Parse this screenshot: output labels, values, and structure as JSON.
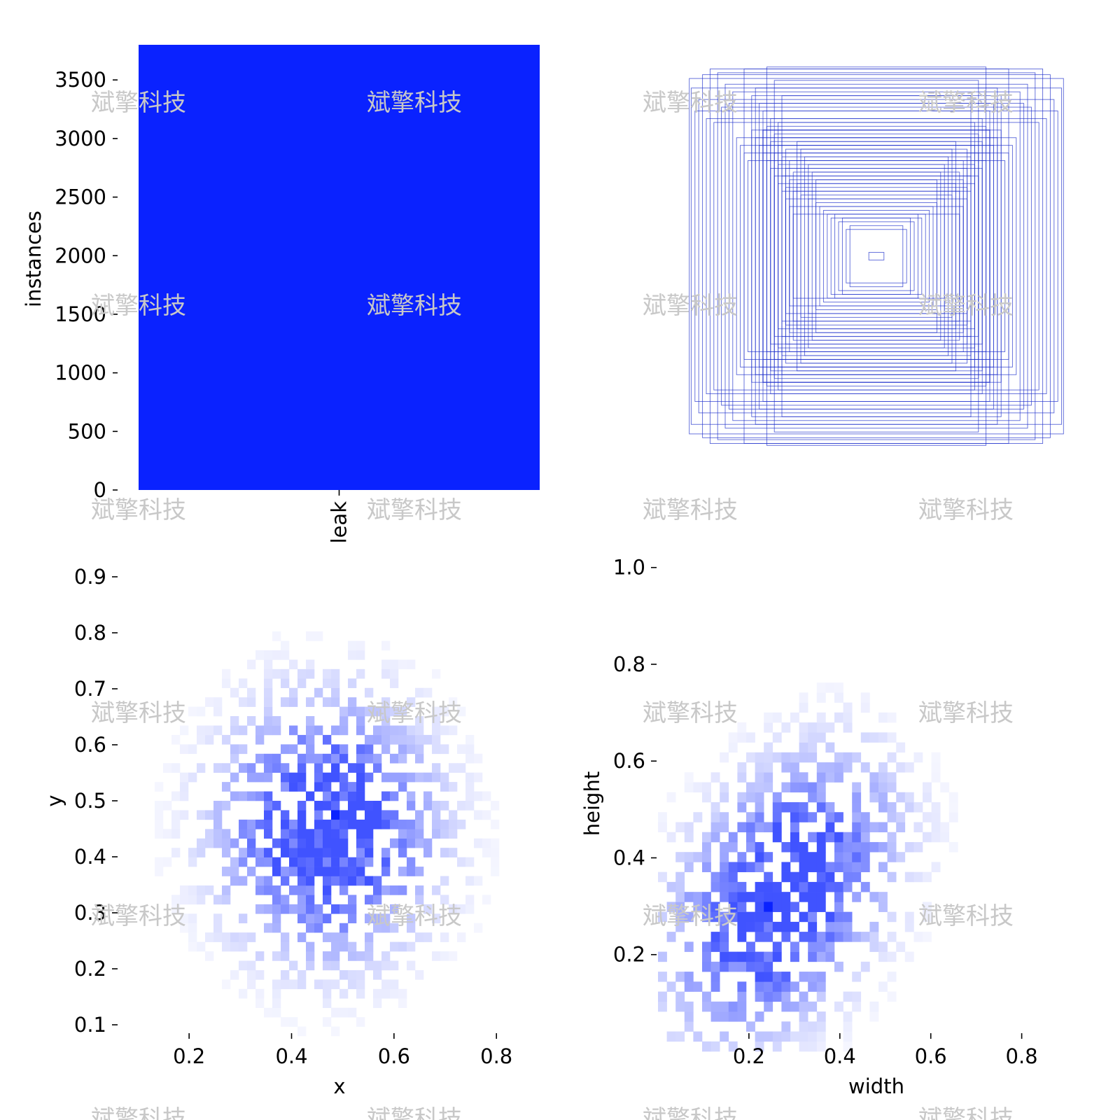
{
  "colors": {
    "bar": "#0a22ff",
    "box_stroke": "#2233cc",
    "text": "#000000",
    "watermark": "#c8c8c8"
  },
  "watermark_text": "斌擎科技",
  "chart_data": [
    {
      "type": "bar",
      "id": "instances",
      "title": "",
      "categories": [
        "leak"
      ],
      "values": [
        3800
      ],
      "xlabel": "",
      "ylabel": "instances",
      "ylim": [
        0,
        3800
      ],
      "yticks": [
        0,
        500,
        1000,
        1500,
        2000,
        2500,
        3000,
        3500
      ],
      "ytick_labels": [
        "0",
        "500",
        "1000",
        "1500",
        "2000",
        "2500",
        "3000",
        "3500"
      ],
      "grid": false
    },
    {
      "type": "other",
      "id": "boxes",
      "title": "",
      "description_kind": "overlaid centered bounding boxes",
      "box_sizes": [
        {
          "w": 0.99,
          "h": 0.93
        },
        {
          "w": 0.98,
          "h": 0.88
        },
        {
          "w": 0.92,
          "h": 0.95
        },
        {
          "w": 0.88,
          "h": 0.98
        },
        {
          "w": 0.84,
          "h": 0.96
        },
        {
          "w": 0.8,
          "h": 0.9
        },
        {
          "w": 0.76,
          "h": 0.86
        },
        {
          "w": 0.7,
          "h": 0.98
        },
        {
          "w": 0.58,
          "h": 0.99
        },
        {
          "w": 0.54,
          "h": 0.92
        },
        {
          "w": 0.5,
          "h": 0.84
        },
        {
          "w": 0.96,
          "h": 0.76
        },
        {
          "w": 0.9,
          "h": 0.72
        },
        {
          "w": 0.86,
          "h": 0.7
        },
        {
          "w": 0.62,
          "h": 0.8
        },
        {
          "w": 0.6,
          "h": 0.76
        },
        {
          "w": 0.56,
          "h": 0.72
        },
        {
          "w": 0.52,
          "h": 0.7
        },
        {
          "w": 0.58,
          "h": 0.68
        },
        {
          "w": 0.54,
          "h": 0.64
        },
        {
          "w": 0.5,
          "h": 0.62
        },
        {
          "w": 0.56,
          "h": 0.6
        },
        {
          "w": 0.52,
          "h": 0.58
        },
        {
          "w": 0.48,
          "h": 0.56
        },
        {
          "w": 0.54,
          "h": 0.54
        },
        {
          "w": 0.5,
          "h": 0.52
        },
        {
          "w": 0.46,
          "h": 0.5
        },
        {
          "w": 0.52,
          "h": 0.48
        },
        {
          "w": 0.48,
          "h": 0.46
        },
        {
          "w": 0.44,
          "h": 0.44
        },
        {
          "w": 0.5,
          "h": 0.42
        },
        {
          "w": 0.46,
          "h": 0.4
        },
        {
          "w": 0.42,
          "h": 0.38
        },
        {
          "w": 0.48,
          "h": 0.36
        },
        {
          "w": 0.44,
          "h": 0.34
        },
        {
          "w": 0.4,
          "h": 0.32
        },
        {
          "w": 0.36,
          "h": 0.3
        },
        {
          "w": 0.32,
          "h": 0.28
        },
        {
          "w": 0.3,
          "h": 0.26
        },
        {
          "w": 0.28,
          "h": 0.24
        },
        {
          "w": 0.26,
          "h": 0.22
        },
        {
          "w": 0.24,
          "h": 0.2
        },
        {
          "w": 0.22,
          "h": 0.22
        },
        {
          "w": 0.2,
          "h": 0.18
        },
        {
          "w": 0.18,
          "h": 0.2
        },
        {
          "w": 0.16,
          "h": 0.14
        },
        {
          "w": 0.14,
          "h": 0.16
        },
        {
          "w": 0.04,
          "h": 0.02
        },
        {
          "w": 0.66,
          "h": 0.66
        },
        {
          "w": 0.64,
          "h": 0.62
        },
        {
          "w": 0.62,
          "h": 0.58
        },
        {
          "w": 0.6,
          "h": 0.54
        },
        {
          "w": 0.58,
          "h": 0.5
        },
        {
          "w": 0.56,
          "h": 0.46
        },
        {
          "w": 0.54,
          "h": 0.42
        },
        {
          "w": 0.52,
          "h": 0.38
        },
        {
          "w": 0.5,
          "h": 0.34
        },
        {
          "w": 0.48,
          "h": 0.3
        },
        {
          "w": 0.46,
          "h": 0.26
        },
        {
          "w": 0.44,
          "h": 0.22
        },
        {
          "w": 0.42,
          "h": 0.6
        },
        {
          "w": 0.4,
          "h": 0.56
        },
        {
          "w": 0.38,
          "h": 0.52
        },
        {
          "w": 0.36,
          "h": 0.48
        },
        {
          "w": 0.34,
          "h": 0.44
        },
        {
          "w": 0.32,
          "h": 0.4
        },
        {
          "w": 0.74,
          "h": 0.62
        },
        {
          "w": 0.72,
          "h": 0.58
        },
        {
          "w": 0.7,
          "h": 0.54
        },
        {
          "w": 0.68,
          "h": 0.5
        },
        {
          "w": 0.78,
          "h": 0.8
        },
        {
          "w": 0.82,
          "h": 0.78
        },
        {
          "w": 0.64,
          "h": 0.88
        },
        {
          "w": 0.66,
          "h": 0.84
        },
        {
          "w": 0.94,
          "h": 0.82
        },
        {
          "w": 0.6,
          "h": 0.66
        }
      ]
    },
    {
      "type": "heatmap",
      "id": "xy",
      "title": "",
      "xlabel": "x",
      "ylabel": "y",
      "xlim": [
        0.1,
        0.92
      ],
      "ylim": [
        0.08,
        0.92
      ],
      "xticks": [
        0.2,
        0.4,
        0.6,
        0.8
      ],
      "xtick_labels": [
        "0.2",
        "0.4",
        "0.6",
        "0.8"
      ],
      "yticks": [
        0.1,
        0.2,
        0.3,
        0.4,
        0.5,
        0.6,
        0.7,
        0.8,
        0.9
      ],
      "ytick_labels": [
        "0.1",
        "0.2",
        "0.3",
        "0.4",
        "0.5",
        "0.6",
        "0.7",
        "0.8",
        "0.9"
      ],
      "bins": 50,
      "center": [
        0.47,
        0.45
      ],
      "spread": [
        0.13,
        0.14
      ],
      "peak": [
        0.49,
        0.47
      ],
      "grid": false
    },
    {
      "type": "heatmap",
      "id": "wh",
      "title": "",
      "xlabel": "width",
      "ylabel": "height",
      "xlim": [
        0.0,
        0.97
      ],
      "ylim": [
        0.0,
        1.03
      ],
      "xticks": [
        0.2,
        0.4,
        0.6,
        0.8
      ],
      "xtick_labels": [
        "0.2",
        "0.4",
        "0.6",
        "0.8"
      ],
      "yticks": [
        0.2,
        0.4,
        0.6,
        0.8,
        1.0
      ],
      "ytick_labels": [
        "0.2",
        "0.4",
        "0.6",
        "0.8",
        "1.0"
      ],
      "bins": 50,
      "center": [
        0.27,
        0.32
      ],
      "spread": [
        0.14,
        0.16
      ],
      "peak": [
        0.24,
        0.29
      ],
      "grid": false
    }
  ]
}
